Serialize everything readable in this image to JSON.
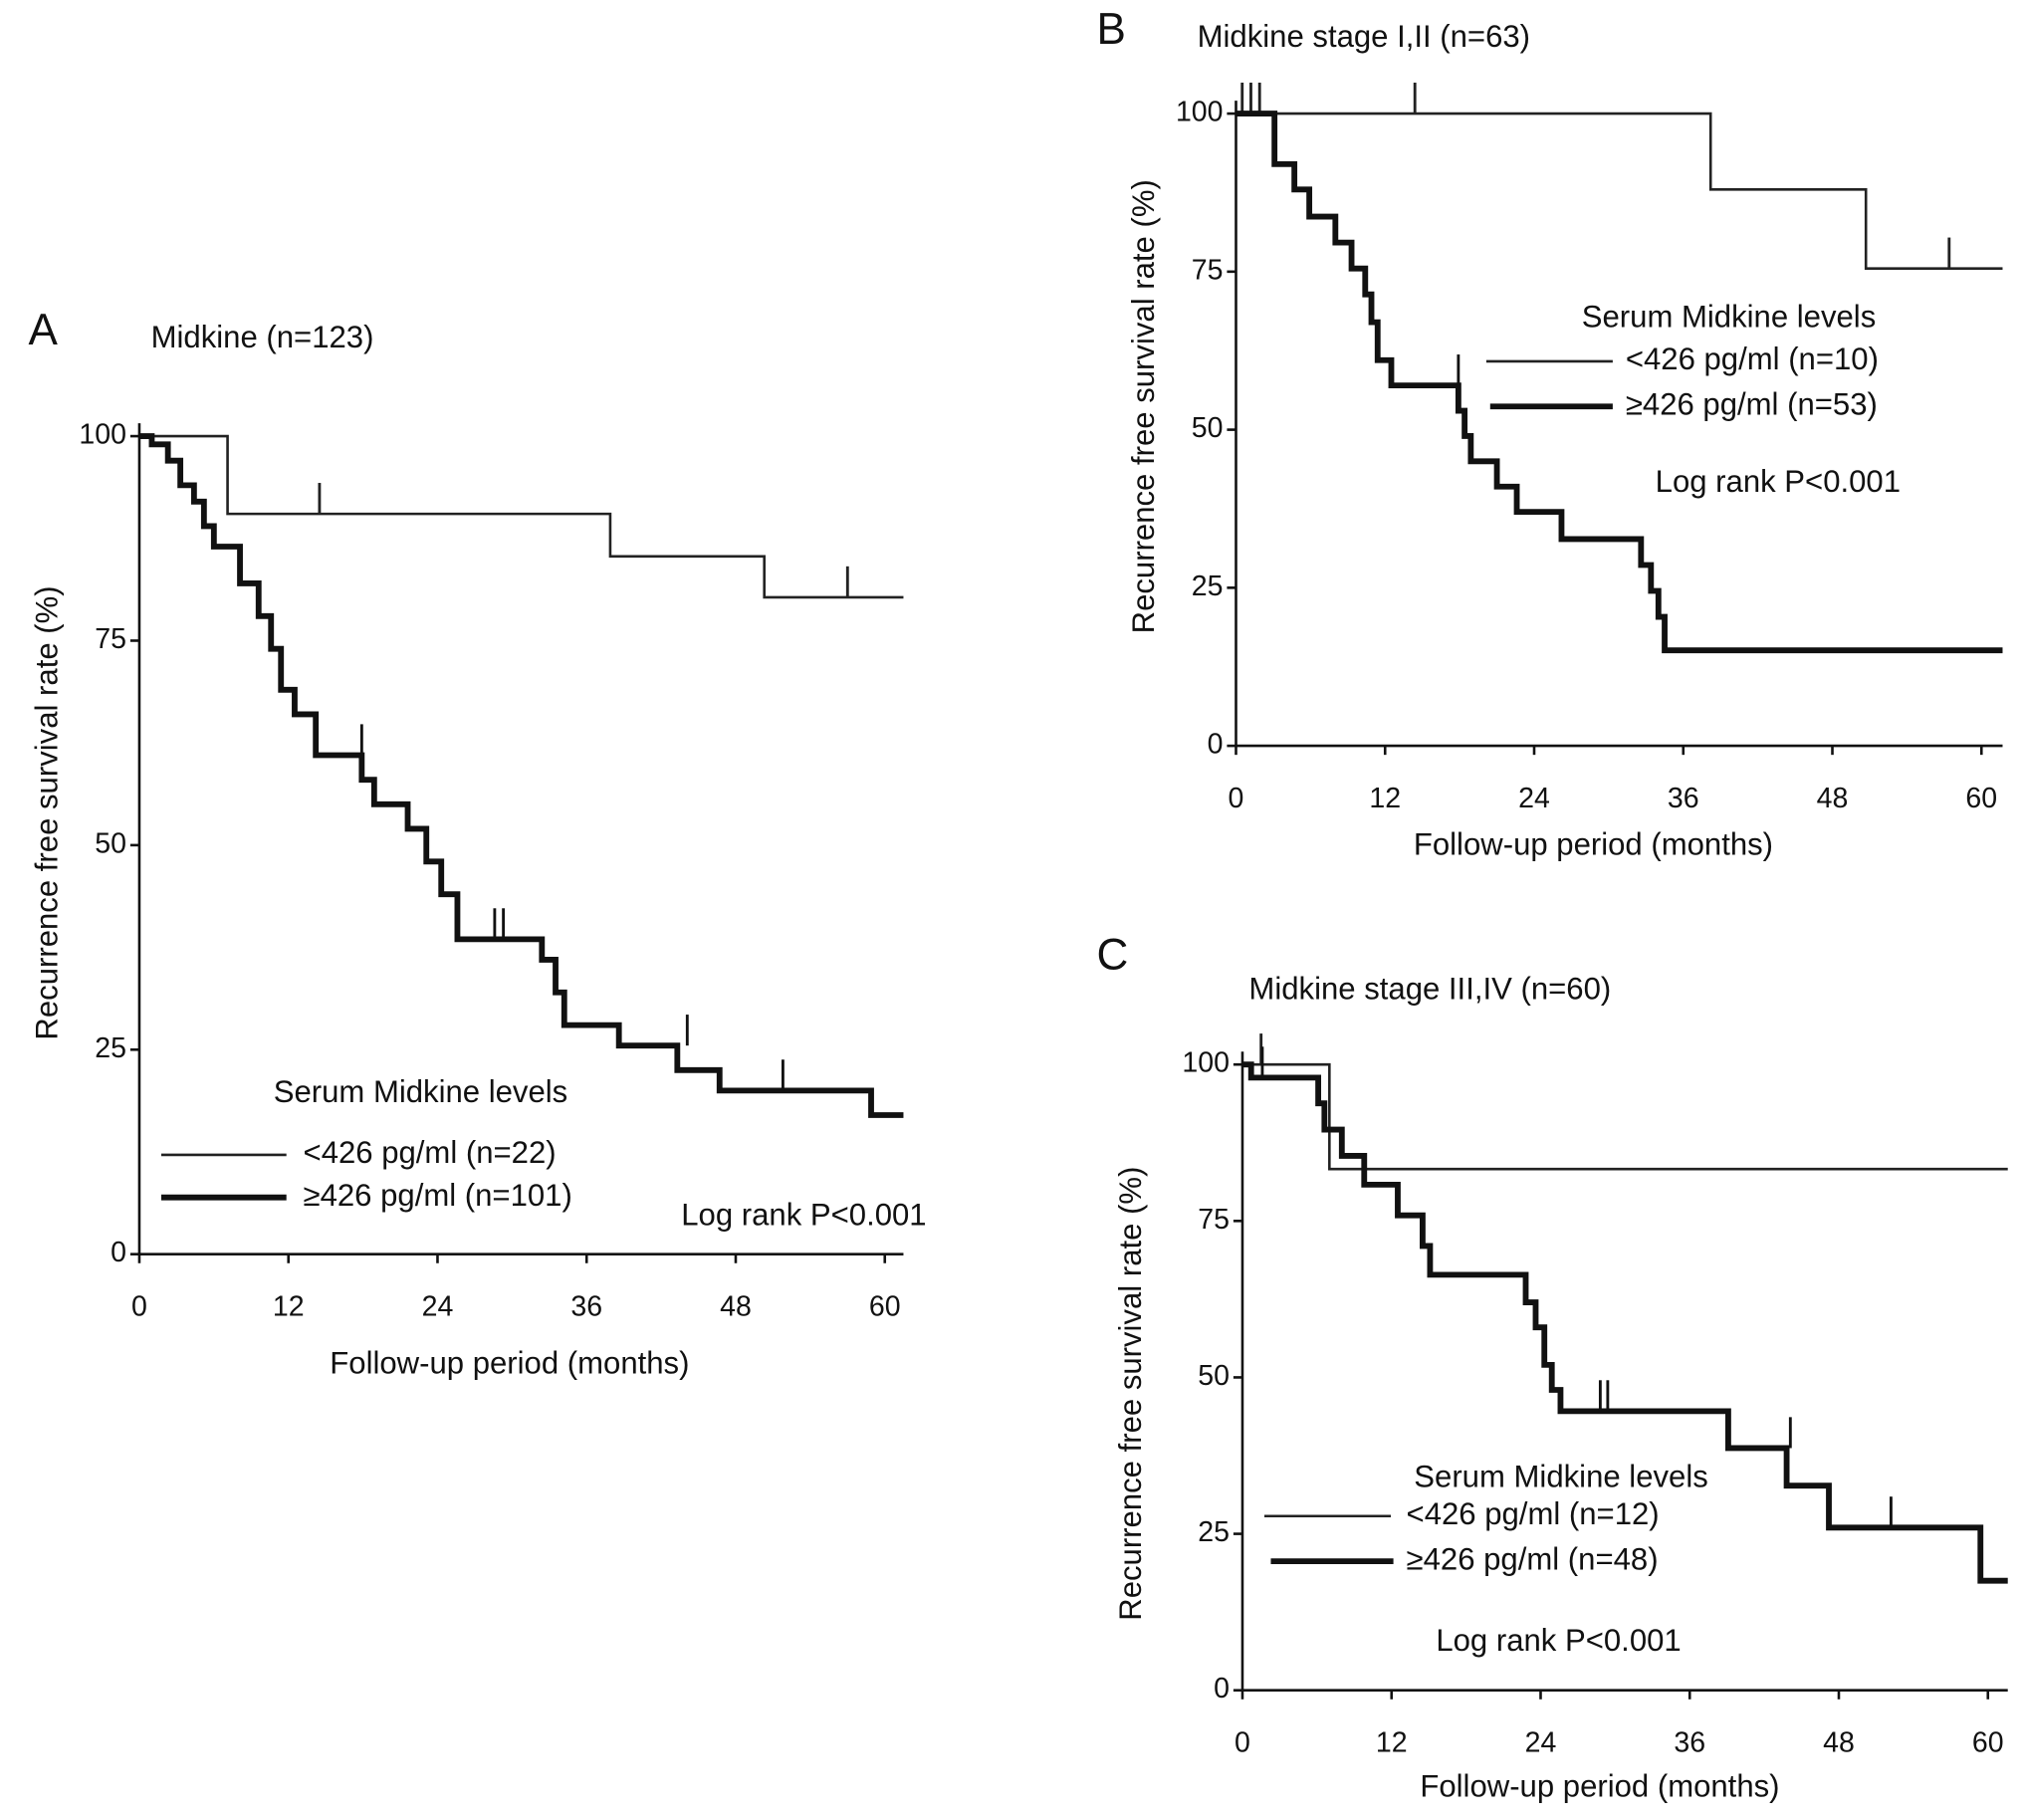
{
  "chart_data": [
    {
      "type": "line",
      "step": true,
      "panel": "A",
      "title": "Midkine (n=123)",
      "xlabel": "Follow-up period (months)",
      "ylabel": "Recurrence free survival rate (%)",
      "legend_title": "Serum Midkine levels",
      "annotation": "Log rank P<0.001",
      "xlim": [
        0,
        61.5
      ],
      "ylim": [
        0,
        100
      ],
      "xticks": [
        0,
        12,
        24,
        36,
        48,
        60
      ],
      "yticks": [
        0,
        25,
        50,
        75,
        100
      ],
      "series": [
        {
          "name": "<426 pg/ml (n=22)",
          "color": "#222222",
          "line_width": 2,
          "x": [
            0,
            7.1,
            37.9,
            50.3,
            61.5
          ],
          "values": [
            100,
            90.5,
            85.3,
            80.3,
            80.3
          ],
          "censored": {
            "x": [
              14.5,
              57
            ],
            "values": [
              90.5,
              80.3
            ]
          }
        },
        {
          "name": "≥426 pg/ml (n=101)",
          "color": "#111111",
          "line_width": 4.5,
          "x": [
            0,
            1,
            2.3,
            3.3,
            4.4,
            5.2,
            6,
            8.1,
            9.6,
            10.6,
            11.4,
            12.5,
            14.2,
            17.9,
            18.9,
            21.6,
            23.1,
            24.3,
            25.6,
            32.4,
            33.5,
            34.2,
            38.6,
            43.3,
            46.7,
            58.9,
            61.5
          ],
          "values": [
            100,
            99,
            97,
            94,
            92,
            89,
            86.5,
            82,
            78,
            74,
            69,
            66,
            61,
            58,
            55,
            52,
            48,
            44,
            38.5,
            36,
            32,
            28,
            25.5,
            22.5,
            20,
            17,
            17
          ],
          "censored": {
            "x": [
              17.9,
              28.6,
              29.3,
              44.1,
              51.8
            ],
            "values": [
              61,
              38.5,
              38.5,
              25.5,
              20
            ]
          }
        }
      ]
    },
    {
      "type": "line",
      "step": true,
      "panel": "B",
      "title": "Midkine stage I,II (n=63)",
      "xlabel": "Follow-up period (months)",
      "ylabel": "Recurrence free survival rate (%)",
      "legend_title": "Serum Midkine levels",
      "annotation": "Log rank P<0.001",
      "xlim": [
        0,
        61.7
      ],
      "ylim": [
        0,
        100
      ],
      "xticks": [
        0,
        12,
        24,
        36,
        48,
        60
      ],
      "yticks": [
        0,
        25,
        50,
        75,
        100
      ],
      "series": [
        {
          "name": "<426 pg/ml (n=10)",
          "color": "#222222",
          "line_width": 2,
          "x": [
            0,
            38.2,
            50.7,
            61.7
          ],
          "values": [
            100,
            88,
            75.5,
            75.5
          ],
          "censored": {
            "x": [
              0.5,
              1.2,
              1.9,
              14.4,
              57.4
            ],
            "values": [
              100,
              100,
              100,
              100,
              75.5
            ]
          }
        },
        {
          "name": "≥426 pg/ml (n=53)",
          "color": "#111111",
          "line_width": 4.5,
          "x": [
            0,
            3.1,
            4.7,
            5.9,
            8,
            9.3,
            10.4,
            10.9,
            11.4,
            12.5,
            17.9,
            18.4,
            18.9,
            21,
            22.6,
            26.2,
            32.6,
            33.4,
            34,
            34.5,
            61.7
          ],
          "values": [
            100,
            92,
            88,
            83.7,
            79.6,
            75.5,
            71.4,
            67,
            61,
            57,
            53,
            49,
            45,
            41,
            37,
            32.7,
            28.6,
            24.5,
            20.4,
            15.1,
            15.1
          ],
          "censored": {
            "x": [
              17.9
            ],
            "values": [
              57
            ]
          }
        }
      ]
    },
    {
      "type": "line",
      "step": true,
      "panel": "C",
      "title": "Midkine stage III,IV (n=60)",
      "xlabel": "Follow-up period (months)",
      "ylabel": "Recurrence free survival rate (%)",
      "legend_title": "Serum Midkine levels",
      "annotation": "Log rank P<0.001",
      "xlim": [
        0,
        61.6
      ],
      "ylim": [
        0,
        100
      ],
      "xticks": [
        0,
        12,
        24,
        36,
        48,
        60
      ],
      "yticks": [
        0,
        25,
        50,
        75,
        100
      ],
      "series": [
        {
          "name": "<426 pg/ml (n=12)",
          "color": "#222222",
          "line_width": 2,
          "x": [
            0,
            7,
            61.6
          ],
          "values": [
            100,
            83.3,
            83.3
          ],
          "censored": {
            "x": [
              1.5
            ],
            "values": [
              100
            ]
          }
        },
        {
          "name": "≥426 pg/ml (n=48)",
          "color": "#111111",
          "line_width": 4.5,
          "x": [
            0,
            0.7,
            6.1,
            6.6,
            8,
            9.8,
            12.5,
            14.5,
            15.1,
            22.8,
            23.6,
            24.3,
            24.9,
            25.6,
            39.1,
            43.8,
            47.2,
            59.4,
            61.6
          ],
          "values": [
            100,
            97.9,
            93.8,
            89.6,
            85.4,
            80.8,
            75.9,
            71,
            66.4,
            62,
            58,
            52,
            48,
            44.6,
            38.7,
            32.7,
            26,
            17.5,
            17.5
          ],
          "censored": {
            "x": [
              1.6,
              28.8,
              29.4,
              44.1,
              52.2
            ],
            "values": [
              97.9,
              44.6,
              44.6,
              38.7,
              26
            ]
          }
        }
      ]
    }
  ]
}
